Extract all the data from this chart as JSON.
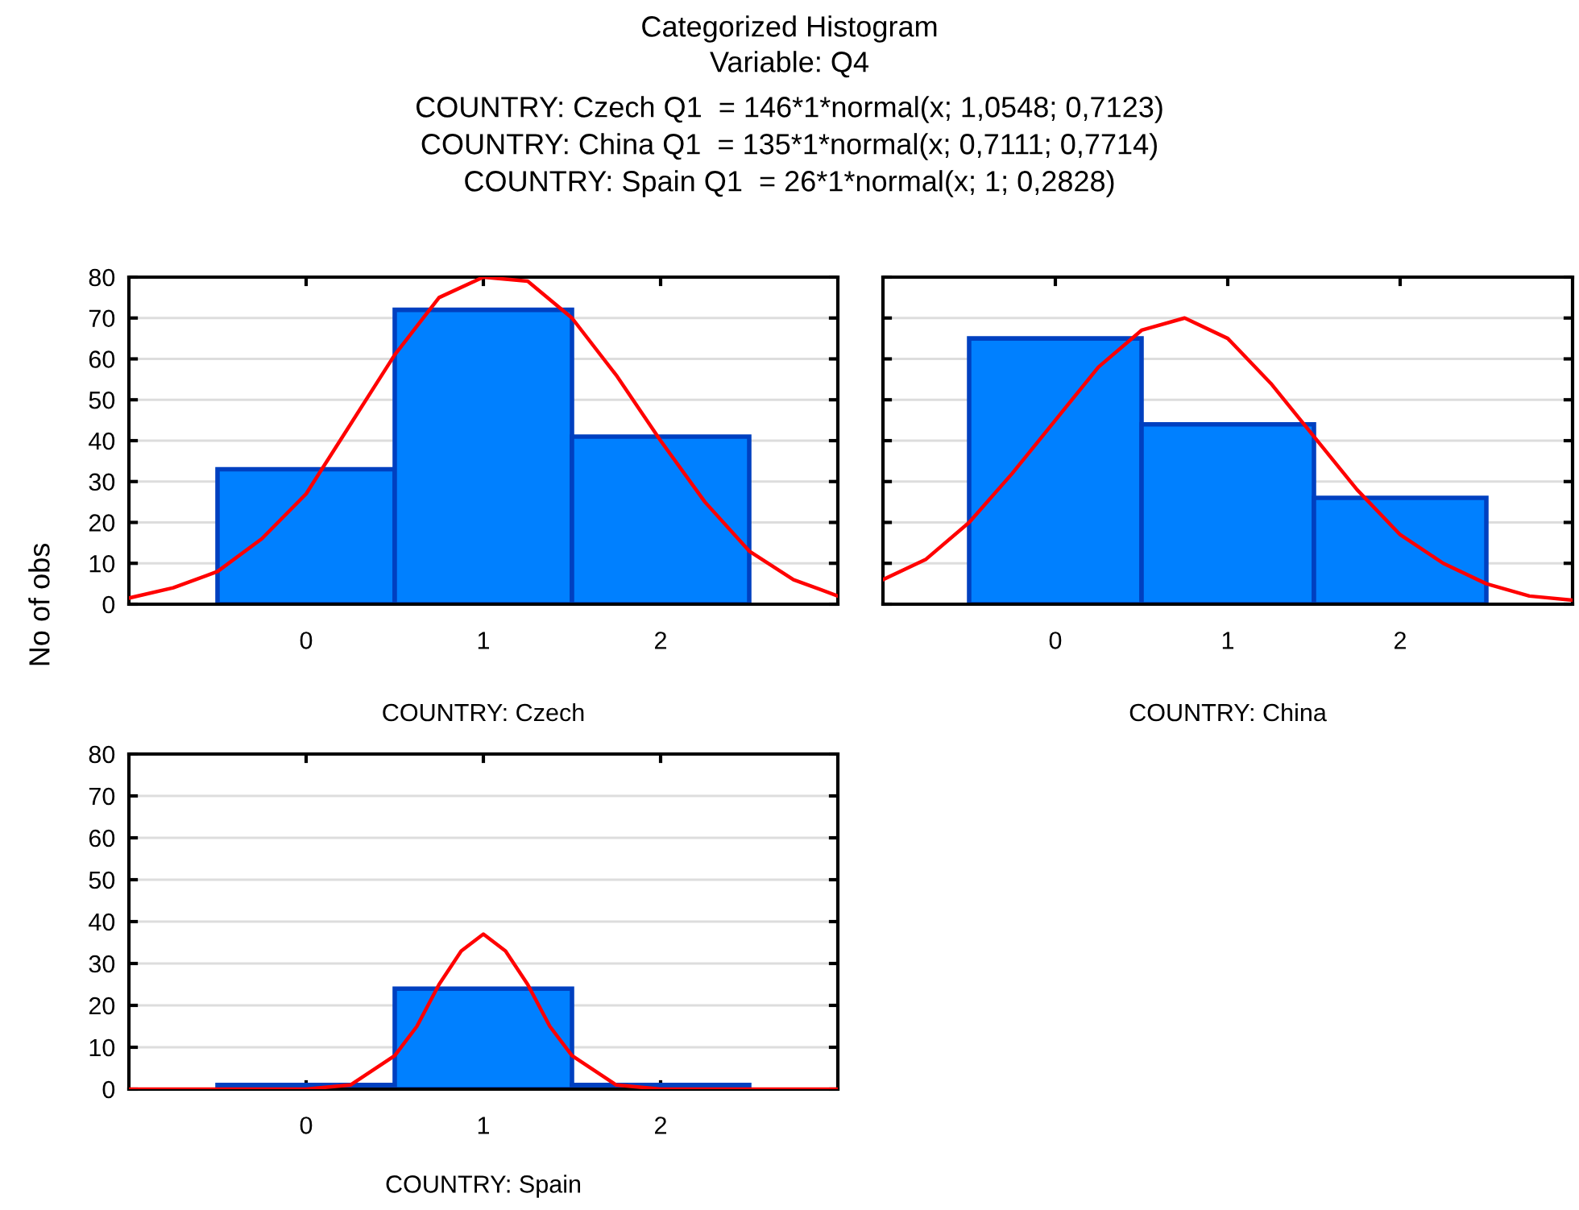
{
  "chart_data": [
    {
      "type": "histogram",
      "title": "Categorized Histogram",
      "subtitle": "Variable: Q4",
      "annotations": [
        "COUNTRY: Czech Q1  = 146*1*normal(x; 1,0548; 0,7123)",
        "COUNTRY: China Q1  = 135*1*normal(x; 0,7111; 0,7714)",
        "COUNTRY: Spain Q1  = 26*1*normal(x; 1; 0,2828)"
      ],
      "ylabel": "No of obs",
      "xlabel": "COUNTRY: Czech",
      "bins": [
        -0.5,
        0.5,
        1.5,
        2.5
      ],
      "xlim": [
        -1,
        3
      ],
      "xticks": [
        0,
        1,
        2
      ],
      "ylim": [
        0,
        80
      ],
      "yticks": [
        0,
        10,
        20,
        30,
        40,
        50,
        60,
        70,
        80
      ],
      "grid": "y",
      "series": [
        {
          "color": "#0080ff",
          "values": [
            33,
            72,
            41
          ]
        },
        {
          "type": "line",
          "color": "#ff0000",
          "x": [
            -1,
            -0.75,
            -0.5,
            -0.25,
            0,
            0.25,
            0.5,
            0.75,
            1,
            1.25,
            1.5,
            1.75,
            2,
            2.25,
            2.5,
            2.75,
            3
          ],
          "values": [
            1.5,
            4,
            8,
            16,
            27,
            44,
            61,
            75,
            80,
            79,
            70,
            56,
            40,
            25,
            13,
            6,
            2
          ]
        }
      ]
    },
    {
      "type": "histogram",
      "xlabel": "COUNTRY: China",
      "bins": [
        -0.5,
        0.5,
        1.5,
        2.5
      ],
      "xlim": [
        -1,
        3
      ],
      "xticks": [
        0,
        1,
        2
      ],
      "ylim": [
        0,
        80
      ],
      "yticks": [
        0,
        10,
        20,
        30,
        40,
        50,
        60,
        70,
        80
      ],
      "grid": "y",
      "tick_labels": "x",
      "series": [
        {
          "color": "#0080ff",
          "values": [
            65,
            44,
            26
          ]
        },
        {
          "type": "line",
          "color": "#ff0000",
          "x": [
            -1,
            -0.75,
            -0.5,
            -0.25,
            0,
            0.25,
            0.5,
            0.75,
            1,
            1.25,
            1.5,
            1.75,
            2,
            2.25,
            2.5,
            2.75,
            3
          ],
          "values": [
            6,
            11,
            20,
            32,
            45,
            58,
            67,
            70,
            65,
            54,
            41,
            28,
            17,
            10,
            5,
            2,
            1
          ]
        }
      ]
    },
    {
      "type": "histogram",
      "xlabel": "COUNTRY: Spain",
      "bins": [
        -0.5,
        0.5,
        1.5,
        2.5
      ],
      "xlim": [
        -1,
        3
      ],
      "xticks": [
        0,
        1,
        2
      ],
      "ylim": [
        0,
        80
      ],
      "yticks": [
        0,
        10,
        20,
        30,
        40,
        50,
        60,
        70,
        80
      ],
      "grid": "y",
      "series": [
        {
          "color": "#0080ff",
          "values": [
            1,
            24,
            1
          ]
        },
        {
          "type": "line",
          "color": "#ff0000",
          "x": [
            -1,
            0,
            0.25,
            0.5,
            0.625,
            0.75,
            0.875,
            1,
            1.125,
            1.25,
            1.375,
            1.5,
            1.75,
            2,
            3
          ],
          "values": [
            0,
            0,
            1,
            8,
            15,
            25,
            33,
            37,
            33,
            25,
            15,
            8,
            1,
            0,
            0
          ]
        }
      ]
    }
  ]
}
